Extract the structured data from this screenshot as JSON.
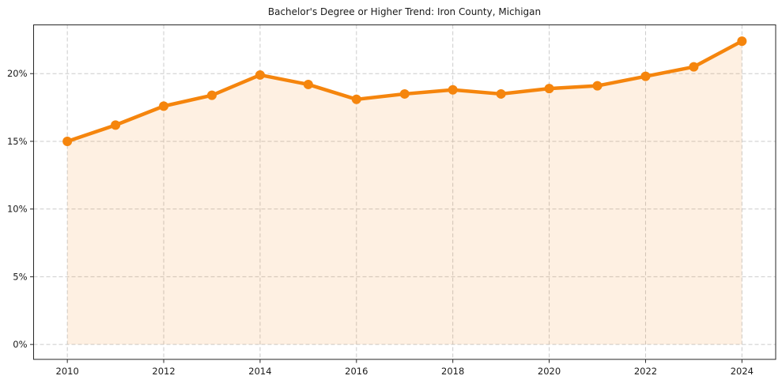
{
  "chart_data": {
    "type": "line",
    "title": "Bachelor's Degree or Higher Trend: Iron County, Michigan",
    "x": [
      2010,
      2011,
      2012,
      2013,
      2014,
      2015,
      2016,
      2017,
      2018,
      2019,
      2020,
      2021,
      2022,
      2023,
      2024
    ],
    "values": [
      15.0,
      16.2,
      17.6,
      18.4,
      19.9,
      19.2,
      18.1,
      18.5,
      18.8,
      18.5,
      18.9,
      19.1,
      19.8,
      20.5,
      22.4
    ],
    "xlabel": "",
    "ylabel": "",
    "x_ticks": [
      2010,
      2012,
      2014,
      2016,
      2018,
      2020,
      2022,
      2024
    ],
    "x_tick_labels": [
      "2010",
      "2012",
      "2014",
      "2016",
      "2018",
      "2020",
      "2022",
      "2024"
    ],
    "y_ticks": [
      0,
      5,
      10,
      15,
      20
    ],
    "y_tick_labels": [
      "0%",
      "5%",
      "10%",
      "15%",
      "20%"
    ],
    "xlim": [
      2009.3,
      2024.7
    ],
    "ylim": [
      -1.1,
      23.6
    ],
    "grid": true,
    "legend": "none",
    "marker": "circle",
    "area_fill": true,
    "colors": {
      "line": "#F5850D",
      "fill": "#F5850D",
      "fill_opacity": 0.12,
      "grid": "#CBCBCB",
      "axis": "#262626",
      "text": "#1A1A1A",
      "background": "#FFFFFF"
    }
  }
}
